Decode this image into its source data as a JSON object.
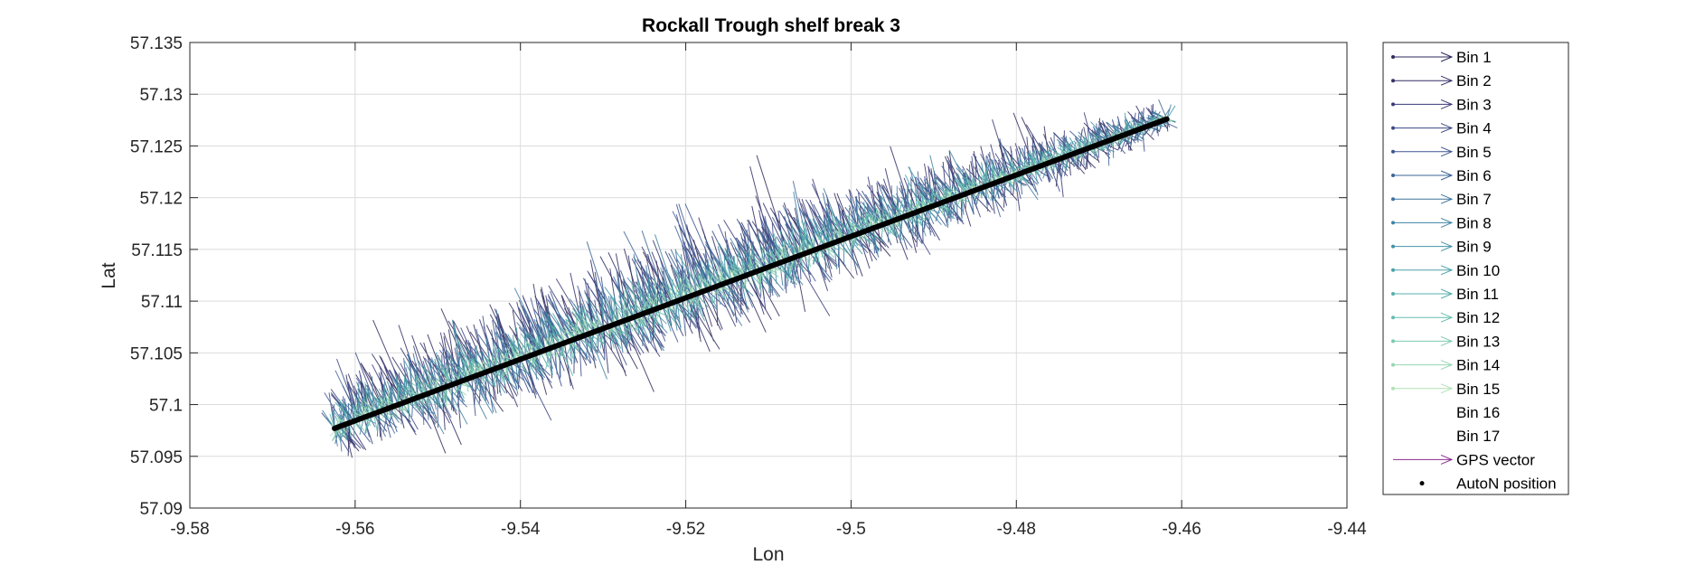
{
  "chart_data": {
    "type": "scatter",
    "title": "Rockall Trough shelf break 3",
    "xlabel": "Lon",
    "ylabel": "Lat",
    "xlim": [
      -9.58,
      -9.44
    ],
    "ylim": [
      57.09,
      57.135
    ],
    "xticks": [
      -9.58,
      -9.56,
      -9.54,
      -9.52,
      -9.5,
      -9.48,
      -9.46,
      -9.44
    ],
    "xtick_labels": [
      "-9.58",
      "-9.56",
      "-9.54",
      "-9.52",
      "-9.5",
      "-9.48",
      "-9.46",
      "-9.44"
    ],
    "yticks": [
      57.09,
      57.095,
      57.1,
      57.105,
      57.11,
      57.115,
      57.12,
      57.125,
      57.13,
      57.135
    ],
    "ytick_labels": [
      "57.09",
      "57.095",
      "57.1",
      "57.105",
      "57.11",
      "57.115",
      "57.12",
      "57.125",
      "57.13",
      "57.135"
    ],
    "grid": true,
    "legend_position": "outside-right",
    "track": {
      "start": [
        -9.5625,
        57.0977
      ],
      "end": [
        -9.4618,
        57.1276
      ]
    },
    "series": [
      {
        "name": "Bin 1",
        "color": "#2e2a5c",
        "marker": "arrow"
      },
      {
        "name": "Bin 2",
        "color": "#332f66",
        "marker": "arrow"
      },
      {
        "name": "Bin 3",
        "color": "#383a78",
        "marker": "arrow"
      },
      {
        "name": "Bin 4",
        "color": "#3b4885",
        "marker": "arrow"
      },
      {
        "name": "Bin 5",
        "color": "#3d5690",
        "marker": "arrow"
      },
      {
        "name": "Bin 6",
        "color": "#3d6598",
        "marker": "arrow"
      },
      {
        "name": "Bin 7",
        "color": "#3e749e",
        "marker": "arrow"
      },
      {
        "name": "Bin 8",
        "color": "#3f83a3",
        "marker": "arrow"
      },
      {
        "name": "Bin 9",
        "color": "#4392a7",
        "marker": "arrow"
      },
      {
        "name": "Bin 10",
        "color": "#4aa1aa",
        "marker": "arrow"
      },
      {
        "name": "Bin 11",
        "color": "#55afac",
        "marker": "arrow"
      },
      {
        "name": "Bin 12",
        "color": "#66bdae",
        "marker": "arrow"
      },
      {
        "name": "Bin 13",
        "color": "#7ccab0",
        "marker": "arrow"
      },
      {
        "name": "Bin 14",
        "color": "#96d6b2",
        "marker": "arrow"
      },
      {
        "name": "Bin 15",
        "color": "#b2e2b5",
        "marker": "arrow"
      },
      {
        "name": "Bin 16",
        "color": "",
        "marker": "none"
      },
      {
        "name": "Bin 17",
        "color": "",
        "marker": "none"
      },
      {
        "name": "GPS vector",
        "color": "#8b2c8e",
        "marker": "arrow"
      },
      {
        "name": "AutoN position",
        "color": "#000000",
        "marker": "dot"
      }
    ]
  }
}
